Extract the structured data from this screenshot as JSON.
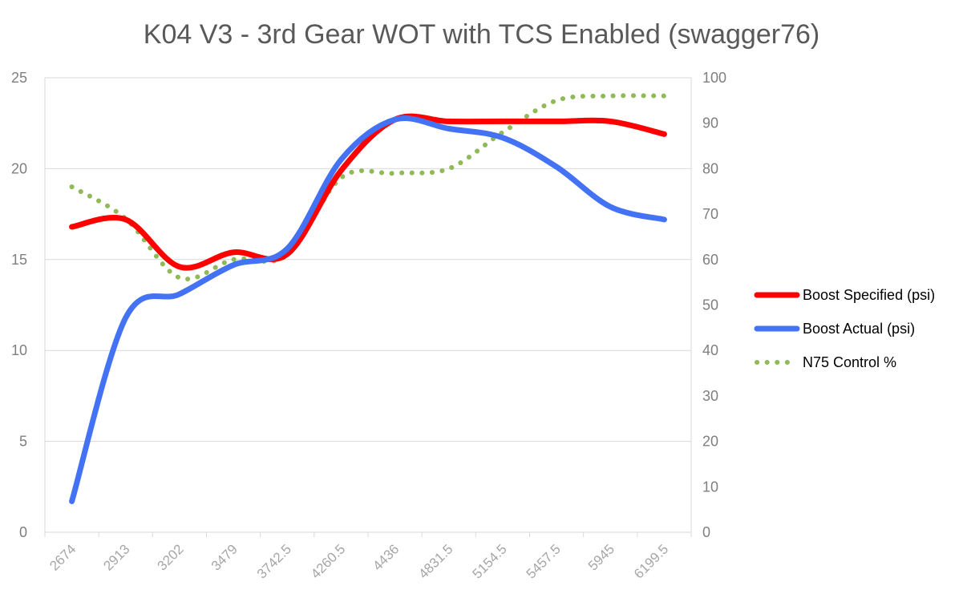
{
  "chart_data": {
    "type": "line",
    "title": "K04 V3 - 3rd Gear WOT with TCS Enabled (swagger76)",
    "xlabel": "",
    "ylabel": "",
    "y2label": "",
    "ylim": [
      0,
      25
    ],
    "y2lim": [
      0,
      100
    ],
    "yticks": [
      0,
      5,
      10,
      15,
      20,
      25
    ],
    "y2ticks": [
      0,
      10,
      20,
      30,
      40,
      50,
      60,
      70,
      80,
      90,
      100
    ],
    "grid": true,
    "legend_position": "right",
    "categories": [
      "2674",
      "2913",
      "3202",
      "3479",
      "3742.5",
      "4260.5",
      "4436",
      "4831.5",
      "5154.5",
      "5457.5",
      "5945",
      "6199.5"
    ],
    "series": [
      {
        "name": "Boost Specified (psi)",
        "axis": "left",
        "style": "solid",
        "color": "#ff0000",
        "values": [
          16.8,
          17.2,
          14.6,
          15.4,
          15.3,
          19.9,
          22.7,
          22.6,
          22.6,
          22.6,
          22.6,
          21.9
        ]
      },
      {
        "name": "Boost Actual (psi)",
        "axis": "left",
        "style": "solid",
        "color": "#4472f4",
        "values": [
          1.7,
          11.8,
          13.1,
          14.7,
          15.6,
          20.5,
          22.7,
          22.2,
          21.7,
          20.1,
          17.9,
          17.2
        ]
      },
      {
        "name": "N75 Control %",
        "axis": "right",
        "style": "dotted",
        "color": "#8fba57",
        "values": [
          76,
          69,
          56,
          60,
          61,
          78,
          79,
          80,
          88,
          95,
          96,
          96
        ]
      }
    ]
  }
}
